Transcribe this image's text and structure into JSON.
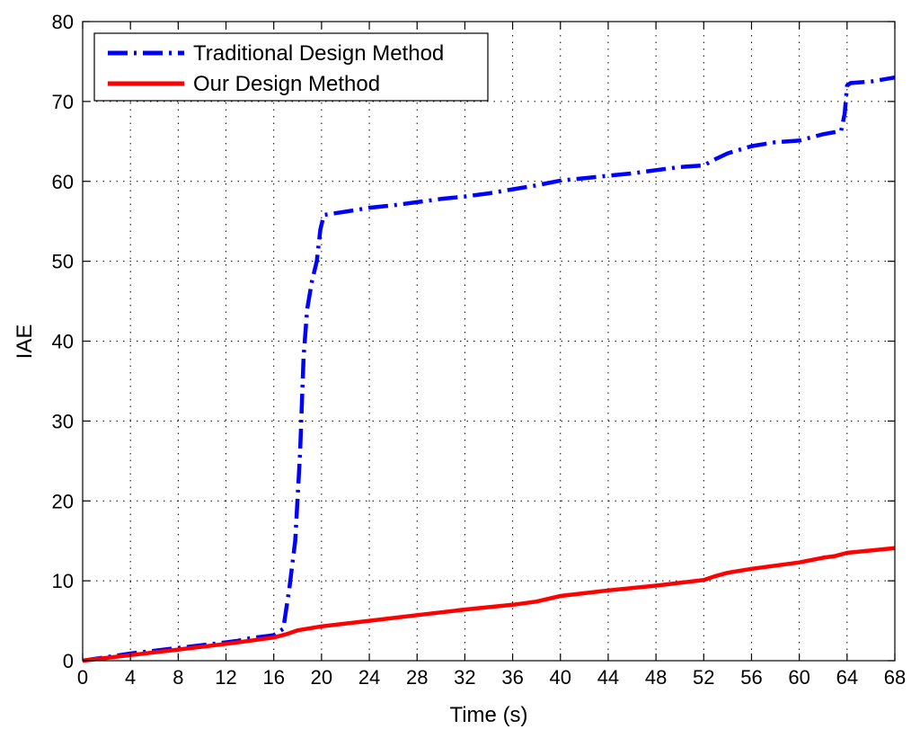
{
  "chart_data": {
    "type": "line",
    "xlabel": "Time (s)",
    "ylabel": "IAE",
    "xlim": [
      0,
      68
    ],
    "ylim": [
      0,
      80
    ],
    "xticks": [
      0,
      4,
      8,
      12,
      16,
      20,
      24,
      28,
      32,
      36,
      40,
      44,
      48,
      52,
      56,
      60,
      64,
      68
    ],
    "yticks": [
      0,
      10,
      20,
      30,
      40,
      50,
      60,
      70,
      80
    ],
    "grid": true,
    "legend_position": "top-left",
    "series": [
      {
        "name": "Traditional Design Method",
        "color": "#0000ff",
        "style": "dash-dot",
        "x": [
          0,
          4,
          8,
          12,
          13,
          14,
          15,
          16,
          16.8,
          17.3,
          17.8,
          18.2,
          18.5,
          18.8,
          19.2,
          19.6,
          19.9,
          20.2,
          22,
          24,
          26,
          28,
          30,
          32,
          34,
          36,
          38,
          40,
          42,
          44,
          46,
          48,
          50,
          52,
          53,
          54,
          56,
          58,
          60,
          62,
          63.5,
          63.8,
          64.0,
          64.3,
          66,
          68
        ],
        "y": [
          0,
          0.9,
          1.6,
          2.3,
          2.5,
          2.8,
          3.0,
          3.2,
          4.0,
          9.0,
          15.0,
          26.0,
          38.0,
          44.0,
          47.5,
          50.0,
          54.0,
          55.8,
          56.2,
          56.7,
          57.0,
          57.4,
          57.8,
          58.1,
          58.5,
          59.0,
          59.5,
          60.1,
          60.4,
          60.7,
          61.0,
          61.4,
          61.8,
          62.0,
          62.8,
          63.5,
          64.4,
          64.9,
          65.1,
          65.9,
          66.3,
          68.5,
          72.0,
          72.3,
          72.5,
          73.0
        ]
      },
      {
        "name": "Our Design Method",
        "color": "#ff0000",
        "style": "solid",
        "x": [
          0,
          4,
          8,
          12,
          14,
          16,
          17,
          18,
          20,
          24,
          28,
          32,
          36,
          38,
          40,
          44,
          48,
          52,
          53,
          54,
          56,
          60,
          62,
          63,
          64,
          66,
          68
        ],
        "y": [
          0,
          0.7,
          1.4,
          2.1,
          2.5,
          2.9,
          3.3,
          3.8,
          4.3,
          5.0,
          5.7,
          6.4,
          7.0,
          7.4,
          8.1,
          8.8,
          9.4,
          10.1,
          10.6,
          11.0,
          11.5,
          12.3,
          12.9,
          13.1,
          13.5,
          13.8,
          14.1
        ]
      }
    ]
  }
}
